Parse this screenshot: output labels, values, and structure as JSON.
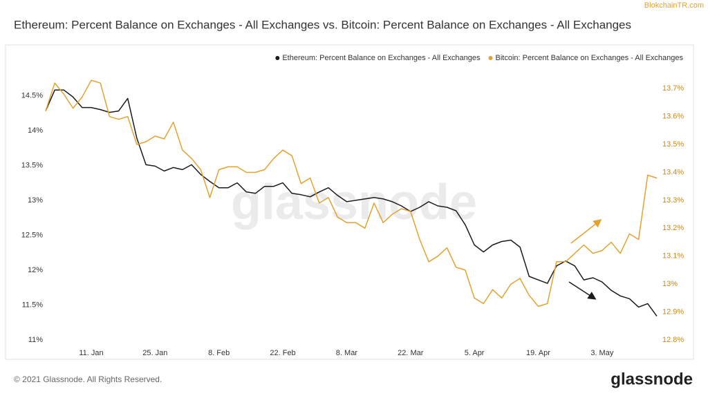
{
  "site": "BlokchainTR.com",
  "chart_data": {
    "type": "line",
    "title": "Ethereum: Percent Balance on Exchanges - All Exchanges vs. Bitcoin: Percent Balance on Exchanges - All Exchanges",
    "watermark": "glassnode",
    "categories": [
      null,
      null,
      null,
      null,
      null,
      "11. Jan",
      null,
      null,
      null,
      null,
      null,
      null,
      "25. Jan",
      null,
      null,
      null,
      null,
      null,
      null,
      "8. Feb",
      null,
      null,
      null,
      null,
      null,
      null,
      "22. Feb",
      null,
      null,
      null,
      null,
      null,
      null,
      "8. Mar",
      null,
      null,
      null,
      null,
      null,
      null,
      "22. Mar",
      null,
      null,
      null,
      null,
      null,
      null,
      "5. Apr",
      null,
      null,
      null,
      null,
      null,
      null,
      "19. Apr",
      null,
      null,
      null,
      null,
      null,
      null,
      "3. May",
      null,
      null,
      null,
      null,
      null,
      null
    ],
    "series": [
      {
        "name": "Ethereum: Percent Balance on Exchanges - All Exchanges",
        "color": "#1a1a1a",
        "values": [
          14.28,
          14.58,
          14.58,
          14.48,
          14.33,
          14.33,
          14.3,
          14.26,
          14.28,
          14.46,
          13.89,
          13.51,
          13.49,
          13.42,
          13.47,
          13.44,
          13.51,
          13.37,
          13.27,
          13.18,
          13.18,
          13.25,
          13.12,
          13.1,
          13.2,
          13.2,
          13.25,
          13.1,
          13.08,
          13.05,
          13.12,
          13.18,
          13.07,
          12.98,
          13.0,
          13.02,
          13.04,
          13.02,
          12.98,
          12.92,
          12.84,
          12.9,
          12.98,
          12.92,
          12.9,
          12.85,
          12.65,
          12.36,
          12.26,
          12.36,
          12.41,
          12.43,
          12.33,
          11.91,
          11.86,
          11.81,
          12.06,
          12.13,
          12.06,
          11.86,
          11.89,
          11.83,
          11.71,
          11.63,
          11.59,
          11.47,
          11.52,
          11.34
        ]
      },
      {
        "name": "Bitcoin: Percent Balance on Exchanges - All Exchanges",
        "color": "#e3a12f",
        "axis": "y2",
        "values": [
          13.62,
          13.72,
          13.68,
          13.63,
          13.67,
          13.73,
          13.72,
          13.6,
          13.59,
          13.6,
          13.5,
          13.51,
          13.53,
          13.52,
          13.58,
          13.48,
          13.45,
          13.41,
          13.31,
          13.41,
          13.42,
          13.42,
          13.4,
          13.4,
          13.41,
          13.45,
          13.48,
          13.46,
          13.36,
          13.38,
          13.29,
          13.31,
          13.24,
          13.22,
          13.22,
          13.2,
          13.29,
          13.22,
          13.25,
          13.27,
          13.26,
          13.16,
          13.08,
          13.1,
          13.13,
          13.06,
          13.05,
          12.95,
          12.93,
          12.98,
          12.95,
          13.0,
          13.02,
          12.96,
          12.92,
          12.93,
          13.08,
          13.08,
          13.11,
          13.14,
          13.11,
          13.12,
          13.15,
          13.11,
          13.18,
          13.16,
          13.39,
          13.38
        ]
      }
    ],
    "ylim": [
      10.92,
      14.88
    ],
    "yticks": [
      {
        "value": 11,
        "label": "11%"
      },
      {
        "value": 11.5,
        "label": "11.5%"
      },
      {
        "value": 12,
        "label": "12%"
      },
      {
        "value": 12.5,
        "label": "12.5%"
      },
      {
        "value": 13,
        "label": "13%"
      },
      {
        "value": 13.5,
        "label": "13.5%"
      },
      {
        "value": 14,
        "label": "14%"
      },
      {
        "value": 14.5,
        "label": "14.5%"
      }
    ],
    "y2lim": [
      12.78,
      13.77
    ],
    "y2ticks": [
      {
        "value": 12.8,
        "label": "12.8%"
      },
      {
        "value": 12.9,
        "label": "12.9%"
      },
      {
        "value": 13,
        "label": "13%"
      },
      {
        "value": 13.1,
        "label": "13.1%"
      },
      {
        "value": 13.2,
        "label": "13.2%"
      },
      {
        "value": 13.3,
        "label": "13.3%"
      },
      {
        "value": 13.4,
        "label": "13.4%"
      },
      {
        "value": 13.5,
        "label": "13.5%"
      },
      {
        "value": 13.6,
        "label": "13.6%"
      },
      {
        "value": 13.7,
        "label": "13.7%"
      }
    ],
    "grid": false,
    "legend": "top-right"
  },
  "footer": {
    "copyright": "© 2021 Glassnode. All Rights Reserved.",
    "logo": "glassnode"
  }
}
